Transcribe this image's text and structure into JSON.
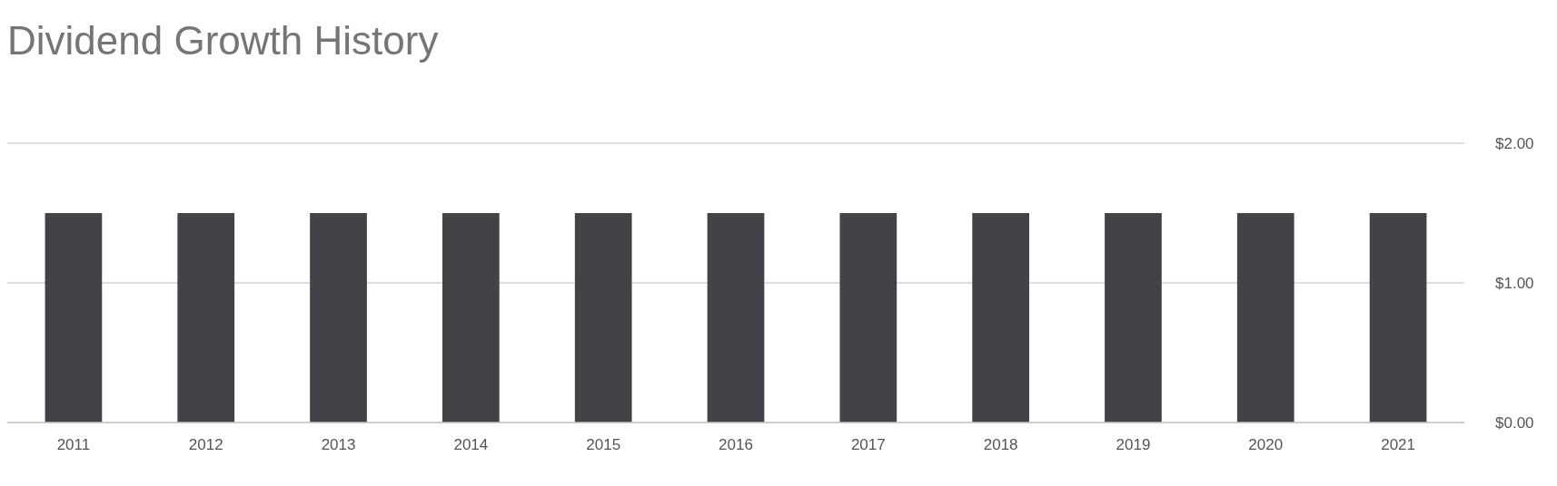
{
  "chart_data": {
    "type": "bar",
    "title": "Dividend Growth History",
    "categories": [
      "2011",
      "2012",
      "2013",
      "2014",
      "2015",
      "2016",
      "2017",
      "2018",
      "2019",
      "2020",
      "2021"
    ],
    "values": [
      1.5,
      1.5,
      1.5,
      1.5,
      1.5,
      1.5,
      1.5,
      1.5,
      1.5,
      1.5,
      1.5
    ],
    "color": "#434246",
    "ylim": [
      0,
      2
    ],
    "yticks": [
      {
        "value": 0,
        "label": "$0.00"
      },
      {
        "value": 1,
        "label": "$1.00"
      },
      {
        "value": 2,
        "label": "$2.00"
      }
    ],
    "grid": "y"
  }
}
